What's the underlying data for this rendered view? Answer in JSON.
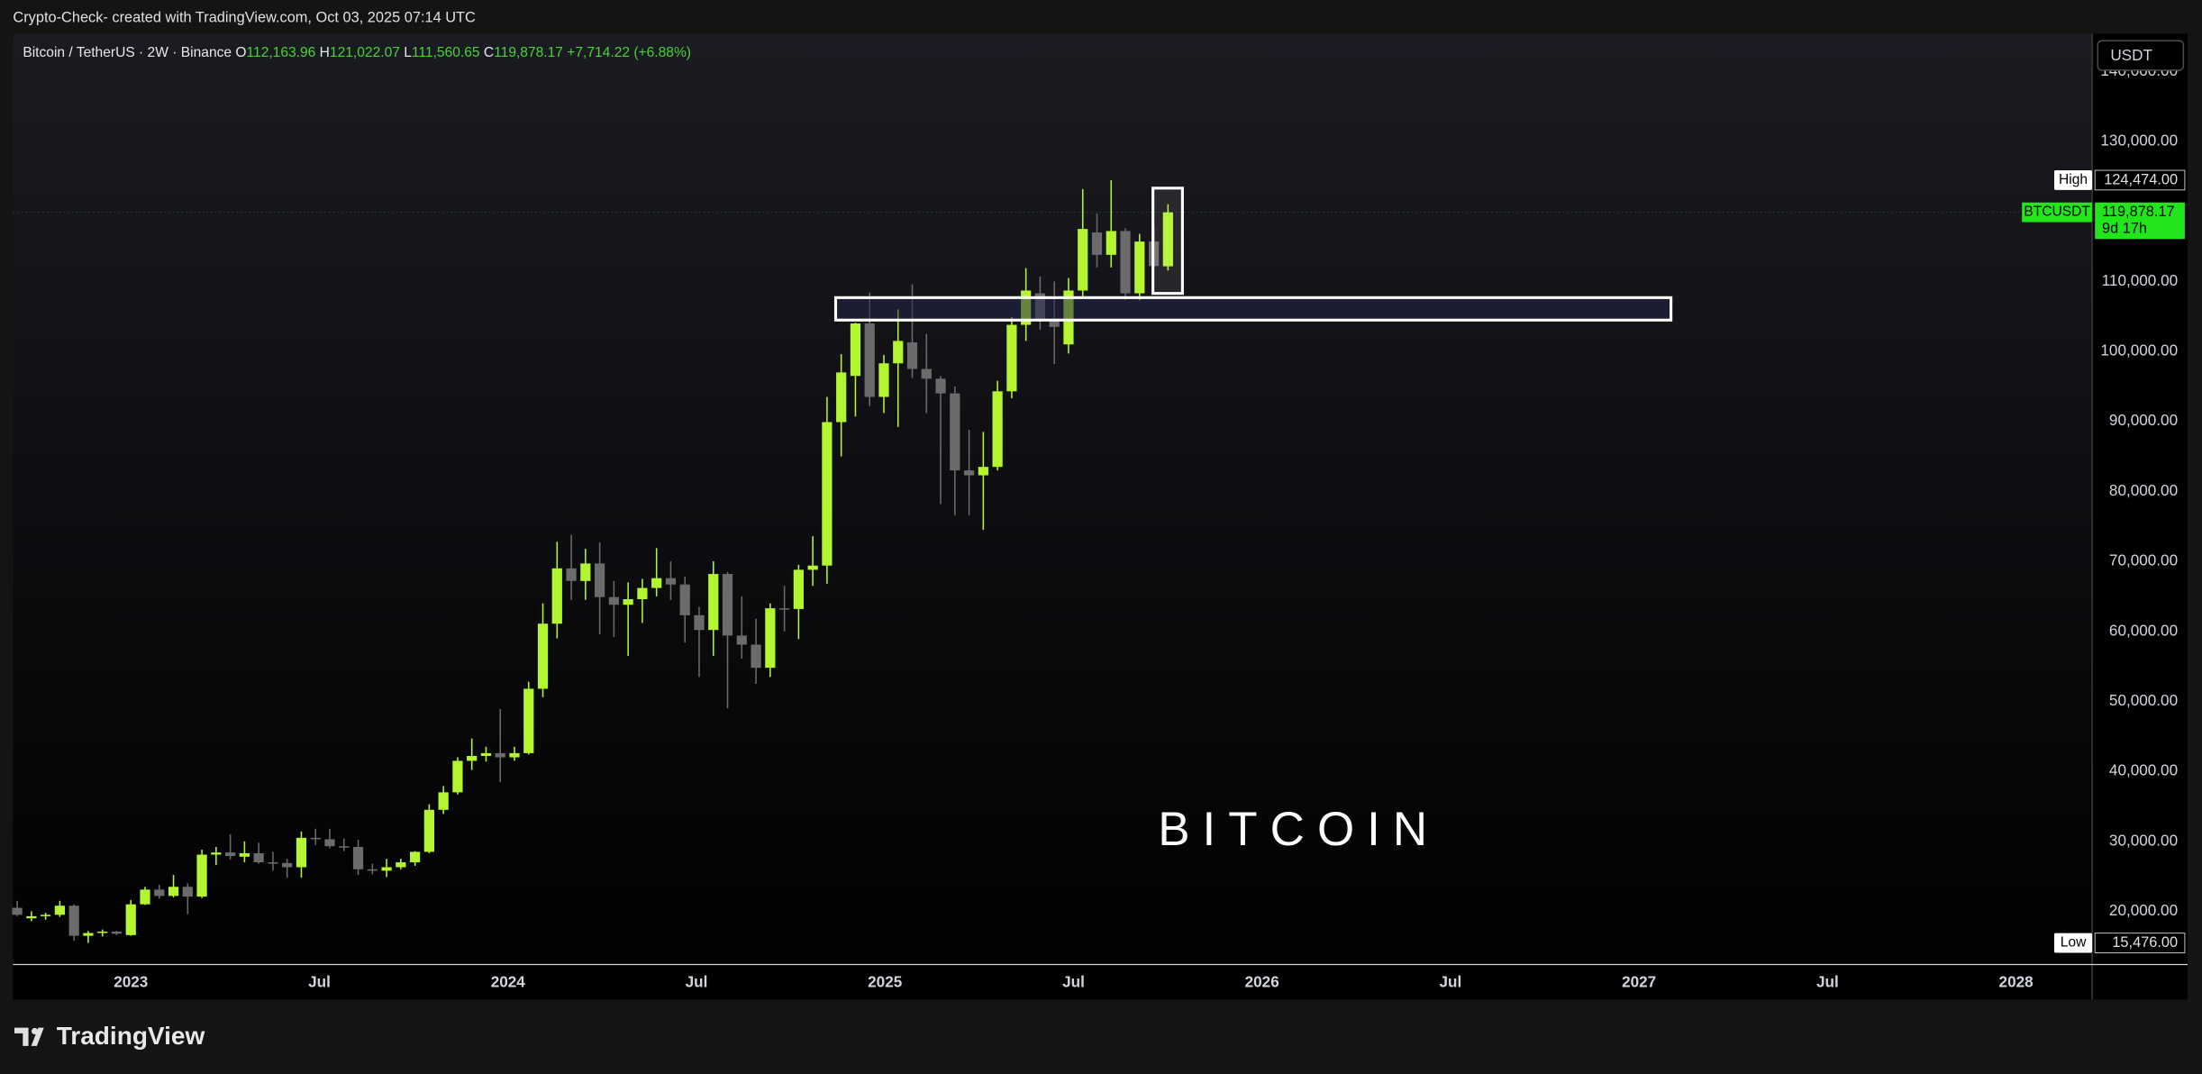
{
  "chart_data": {
    "type": "candlestick",
    "watermark": "Crypto-Check- created with TradingView.com, Oct 03, 2025 07:14 UTC",
    "legend": {
      "symbol": "Bitcoin / TetherUS · 2W · Binance",
      "o": "O",
      "open": "112,163.96",
      "h": "H",
      "high": "121,022.07",
      "l": "L",
      "low": "111,560.65",
      "c": "C",
      "close": "119,878.17",
      "change": "+7,714.22 (+6.88%)"
    },
    "currency": "USDT",
    "annotation": "BITCOIN",
    "brand": "TradingView",
    "up_color": "#b3f530",
    "down_color": "#6b6b6b",
    "grid": false,
    "ylim": [
      12400,
      145400
    ],
    "yticks": [
      {
        "value": 20000,
        "label": "20,000.00"
      },
      {
        "value": 30000,
        "label": "30,000.00"
      },
      {
        "value": 40000,
        "label": "40,000.00"
      },
      {
        "value": 50000,
        "label": "50,000.00"
      },
      {
        "value": 60000,
        "label": "60,000.00"
      },
      {
        "value": 70000,
        "label": "70,000.00"
      },
      {
        "value": 80000,
        "label": "80,000.00"
      },
      {
        "value": 90000,
        "label": "90,000.00"
      },
      {
        "value": 100000,
        "label": "100,000.00"
      },
      {
        "value": 110000,
        "label": "110,000.00"
      },
      {
        "value": 120000,
        "label": "120,000.00"
      },
      {
        "value": 130000,
        "label": "130,000.00"
      },
      {
        "value": 140000,
        "label": "140,000.00"
      }
    ],
    "xticks": [
      {
        "value": "2023-01",
        "label": "2023"
      },
      {
        "value": "2023-07",
        "label": "Jul"
      },
      {
        "value": "2024-01",
        "label": "2024"
      },
      {
        "value": "2024-07",
        "label": "Jul"
      },
      {
        "value": "2025-01",
        "label": "2025"
      },
      {
        "value": "2025-07",
        "label": "Jul"
      },
      {
        "value": "2026-01",
        "label": "2026"
      },
      {
        "value": "2026-07",
        "label": "Jul"
      },
      {
        "value": "2027-01",
        "label": "2027"
      },
      {
        "value": "2027-07",
        "label": "Jul"
      },
      {
        "value": "2028-01",
        "label": "2028"
      }
    ],
    "high_marker": {
      "label": "High",
      "value": 124474,
      "value_label": "124,474.00"
    },
    "low_marker": {
      "label": "Low",
      "value": 15476,
      "value_label": "15,476.00"
    },
    "last_marker": {
      "label": "BTCUSDT",
      "value": 119878.17,
      "value_label": "119,878.17",
      "countdown": "9d 17h"
    },
    "open": [
      20500,
      19000,
      19300,
      19500,
      20800,
      16500,
      16900,
      17100,
      16600,
      21000,
      23100,
      22200,
      23500,
      22100,
      28100,
      28400,
      27800,
      28300,
      27000,
      26900,
      26300,
      30500,
      30300,
      29300,
      29200,
      26000,
      25800,
      26300,
      27000,
      28500,
      34500,
      37000,
      41500,
      42200,
      42600,
      42000,
      42600,
      51800,
      61100,
      69000,
      67200,
      69700,
      64900,
      63800,
      64600,
      66200,
      67600,
      66700,
      62300,
      60200,
      68200,
      59400,
      58100,
      54800,
      63300,
      63200,
      68800,
      69400,
      89900,
      96500,
      104000,
      93500,
      98300,
      101300,
      97500,
      96100,
      94000,
      83000,
      82300,
      83500,
      94300,
      103800,
      108300,
      104600,
      101000,
      108700,
      117000,
      113800,
      117200,
      108300,
      115700,
      112163.96
    ],
    "high": [
      21500,
      20000,
      19800,
      21500,
      21000,
      17200,
      17400,
      17200,
      21600,
      23500,
      23800,
      25200,
      24000,
      28800,
      29200,
      31000,
      30000,
      29800,
      28500,
      27500,
      31400,
      31800,
      31800,
      30400,
      30200,
      26800,
      27500,
      27500,
      28600,
      35300,
      37900,
      42000,
      44700,
      43500,
      48900,
      43500,
      52800,
      64000,
      72800,
      73800,
      71800,
      72700,
      67200,
      67000,
      67500,
      71900,
      70000,
      67800,
      63500,
      70000,
      68500,
      65000,
      61800,
      64000,
      66500,
      69500,
      73600,
      93500,
      99600,
      104100,
      108400,
      99500,
      106000,
      109600,
      102500,
      96500,
      95000,
      88800,
      88500,
      95800,
      104900,
      111900,
      110700,
      110000,
      110500,
      123200,
      119700,
      124474,
      117600,
      116800,
      117900,
      121022.07
    ],
    "low": [
      19300,
      18600,
      18800,
      19200,
      15800,
      15476,
      16400,
      16600,
      16500,
      20900,
      21800,
      22000,
      19600,
      21900,
      26600,
      27400,
      27000,
      26800,
      25800,
      24800,
      24800,
      29500,
      29000,
      28600,
      25200,
      25300,
      24900,
      26000,
      26500,
      28300,
      33900,
      36700,
      40200,
      41400,
      38500,
      41500,
      42400,
      50600,
      59000,
      64500,
      64500,
      59600,
      59200,
      56500,
      61200,
      65000,
      64500,
      58400,
      53500,
      56500,
      49000,
      56100,
      52500,
      53500,
      60000,
      58900,
      66500,
      66800,
      85000,
      90700,
      92200,
      91200,
      89200,
      96200,
      91200,
      78200,
      76600,
      76600,
      74500,
      83000,
      93300,
      101500,
      103100,
      98200,
      99700,
      107500,
      112000,
      112000,
      107300,
      107300,
      112000,
      111560.65
    ],
    "close": [
      19500,
      19300,
      19500,
      20800,
      16500,
      16900,
      17100,
      16800,
      21000,
      23100,
      22200,
      23500,
      22100,
      28100,
      28400,
      27900,
      28300,
      27000,
      26900,
      26300,
      30500,
      30300,
      29300,
      29200,
      26000,
      25800,
      26300,
      27000,
      28500,
      34500,
      37000,
      41500,
      42200,
      42600,
      42000,
      42600,
      51800,
      61100,
      69000,
      67200,
      69700,
      64900,
      63800,
      64600,
      66200,
      67600,
      66700,
      62300,
      60200,
      68200,
      59400,
      58100,
      54800,
      63300,
      63200,
      68800,
      69400,
      89900,
      97000,
      104000,
      93500,
      98300,
      101500,
      97500,
      96100,
      94000,
      83000,
      82300,
      83500,
      94300,
      103800,
      108700,
      104600,
      103500,
      108700,
      117500,
      113800,
      117200,
      108300,
      115700,
      112200,
      119878.17
    ]
  }
}
